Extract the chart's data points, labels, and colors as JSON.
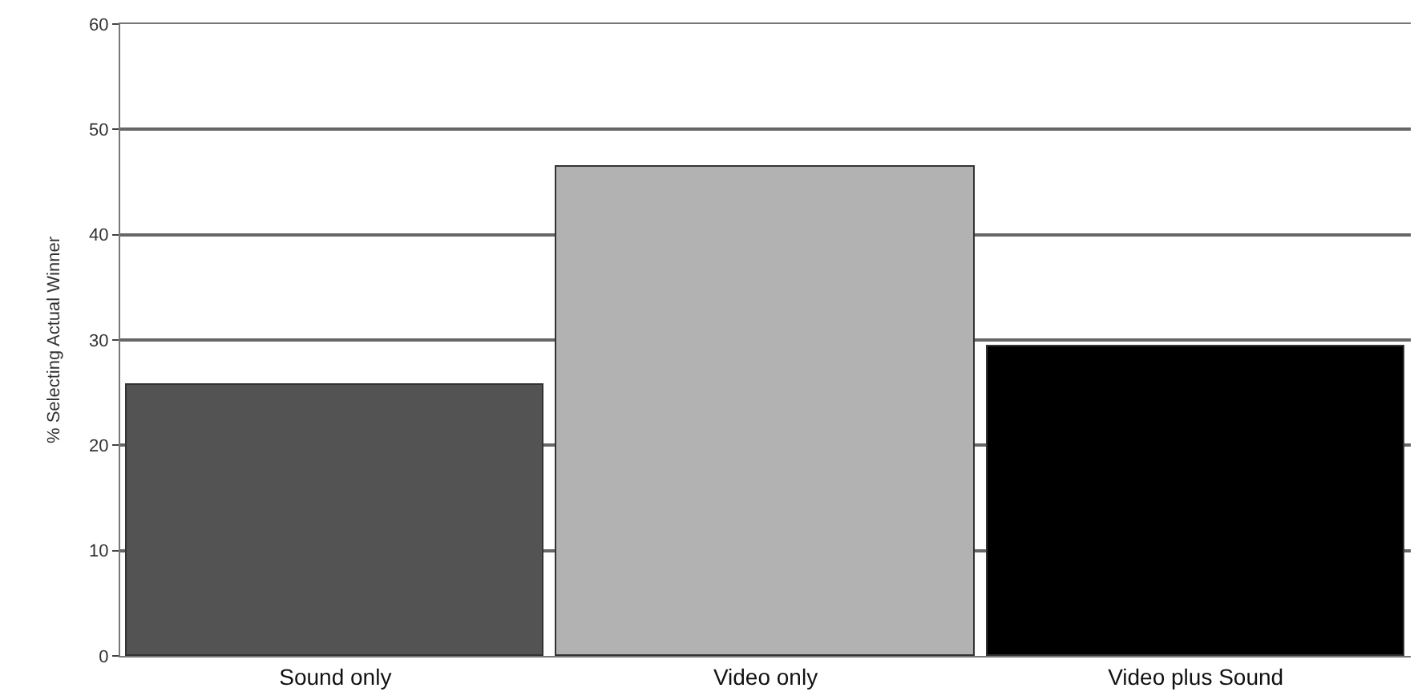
{
  "chart_data": {
    "type": "bar",
    "ylabel": "% Selecting Actual Winner",
    "categories": [
      "Sound only",
      "Video only",
      "Video plus Sound"
    ],
    "values": [
      25.7,
      46.4,
      29.4
    ],
    "colors": [
      "#535353",
      "#b2b2b2",
      "#000000"
    ],
    "ylim": [
      0,
      60
    ],
    "yticks": [
      0,
      10,
      20,
      30,
      40,
      50,
      60
    ],
    "grid": "y",
    "legend": false
  }
}
